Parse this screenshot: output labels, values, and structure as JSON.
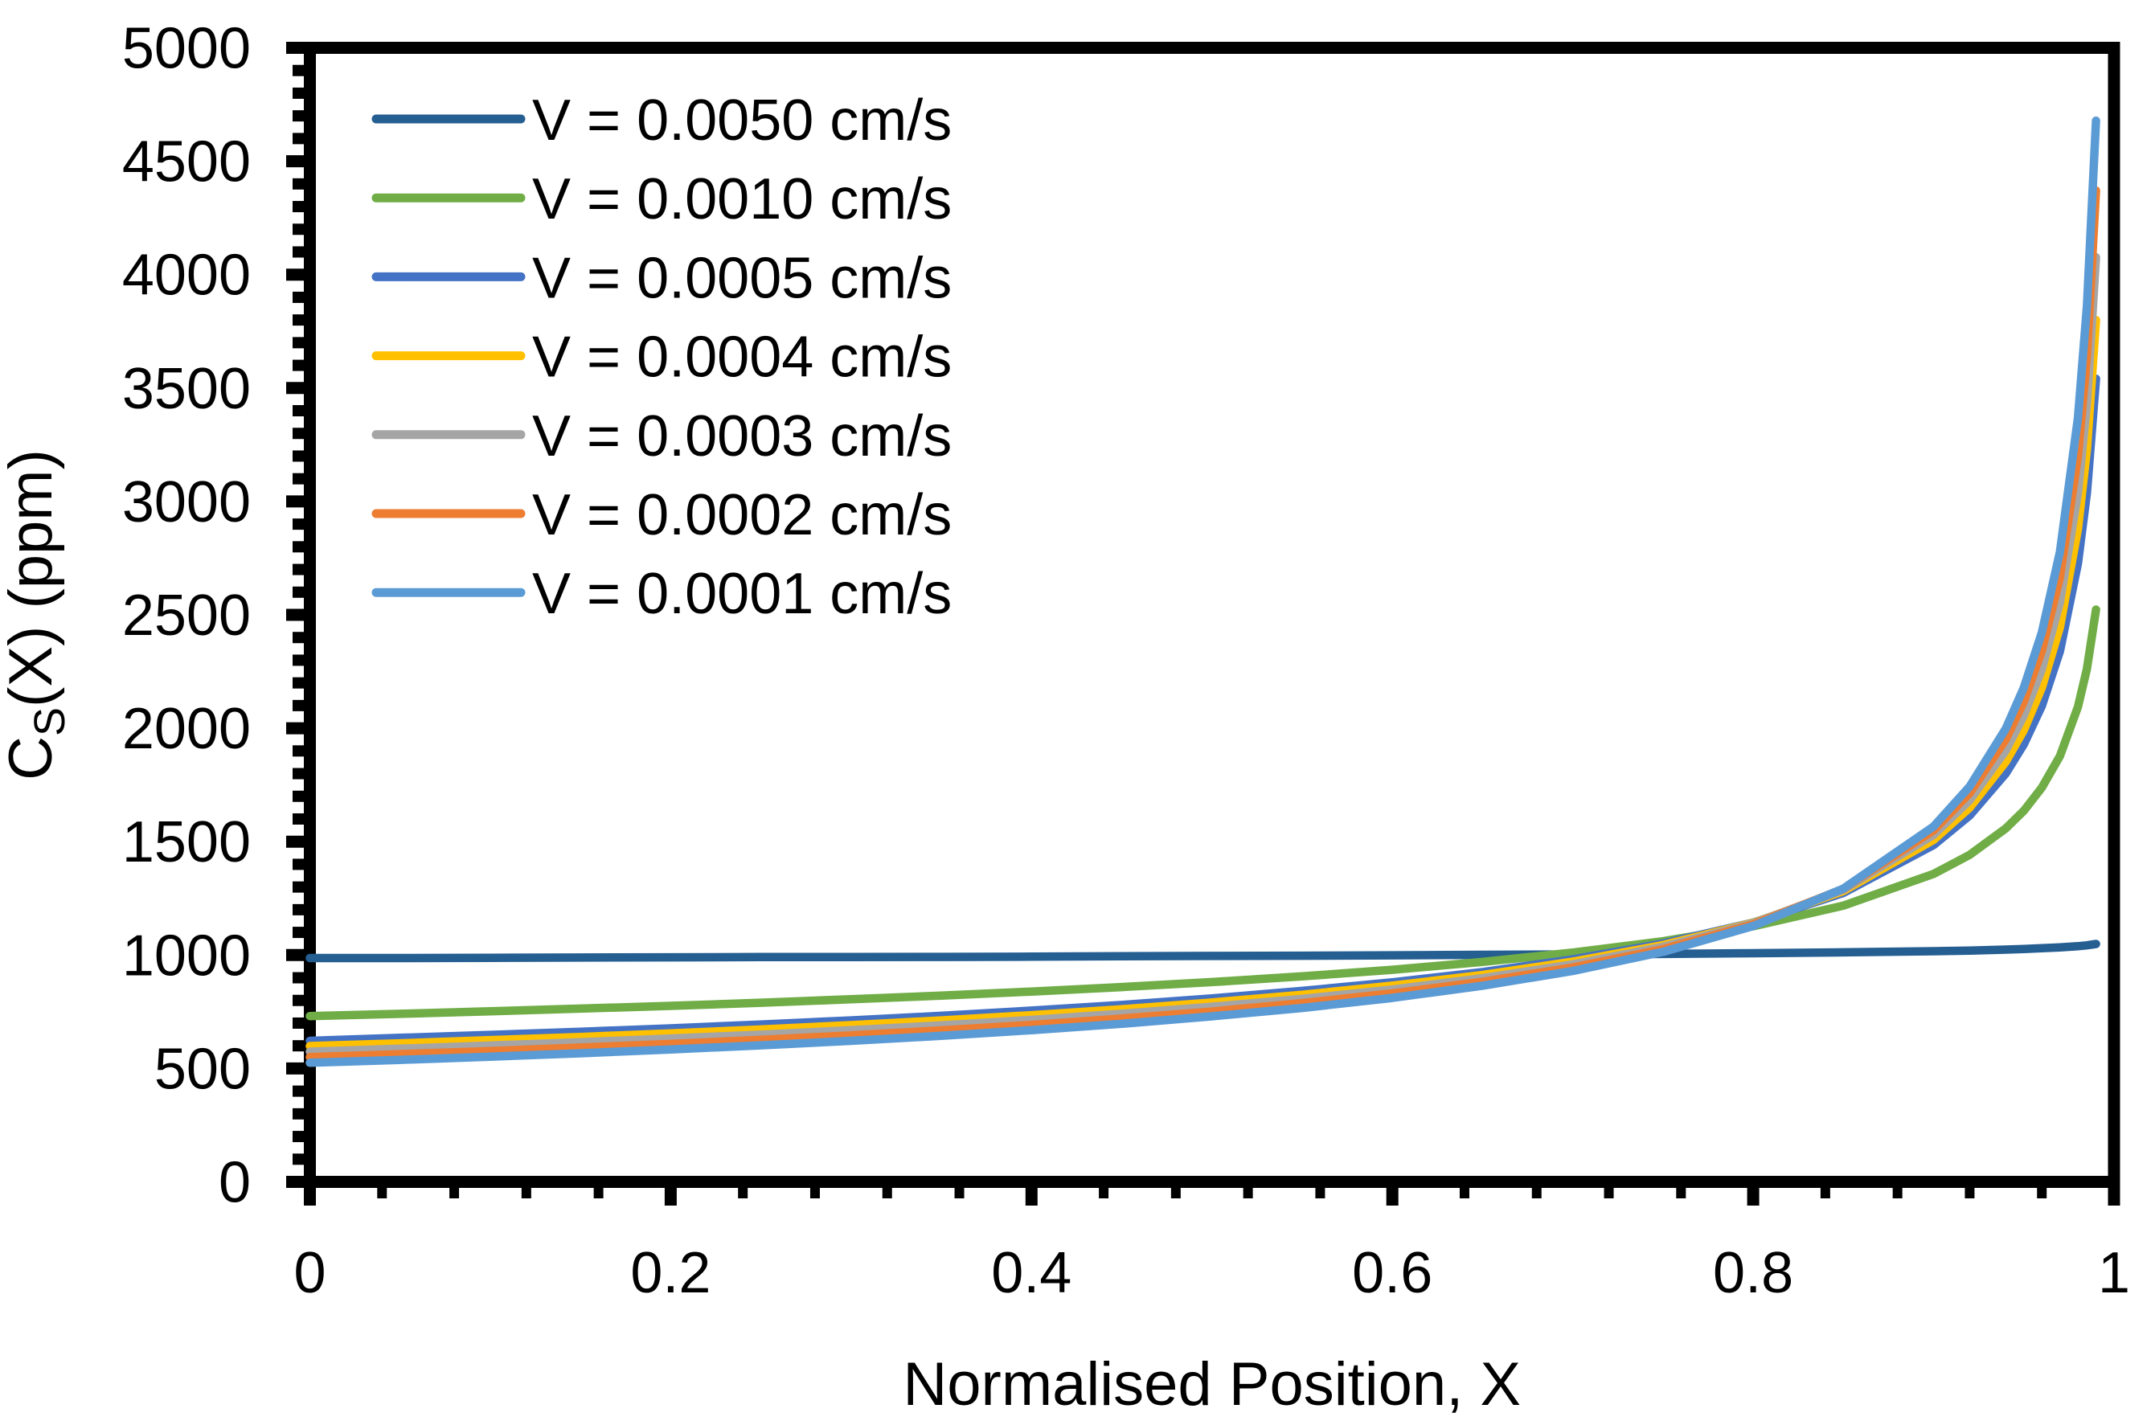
{
  "figure": {
    "background": "#FFFFFF",
    "axis_color": "#000000",
    "x_axis": {
      "title": "Normalised Position, X",
      "min": 0,
      "max": 1,
      "major_step": 0.2,
      "minor_step": 0.04,
      "tick_values": [
        0,
        0.2,
        0.4,
        0.6,
        0.8,
        1
      ],
      "tick_labels": [
        "0",
        "0.2",
        "0.4",
        "0.6",
        "0.8",
        "1"
      ]
    },
    "y_axis": {
      "title_plain": "CS(X) (ppm)",
      "title_parts": {
        "pre": "C",
        "sub": "S",
        "post": "(X) (ppm)"
      },
      "min": 0,
      "max": 5000,
      "major_step": 500,
      "minor_step": 100,
      "tick_values": [
        0,
        500,
        1000,
        1500,
        2000,
        2500,
        3000,
        3500,
        4000,
        4500,
        5000
      ],
      "tick_labels": [
        "0",
        "500",
        "1000",
        "1500",
        "2000",
        "2500",
        "3000",
        "3500",
        "4000",
        "4500",
        "5000"
      ]
    },
    "legend": {
      "position": "upper-left-inside",
      "items": [
        {
          "label": "V = 0.0050 cm/s",
          "color": "#255E91"
        },
        {
          "label": "V = 0.0010 cm/s",
          "color": "#70AD47"
        },
        {
          "label": "V = 0.0005 cm/s",
          "color": "#4472C4"
        },
        {
          "label": "V = 0.0004 cm/s",
          "color": "#FFC000"
        },
        {
          "label": "V = 0.0003 cm/s",
          "color": "#A5A5A5"
        },
        {
          "label": "V = 0.0002 cm/s",
          "color": "#ED7D31"
        },
        {
          "label": "V = 0.0001 cm/s",
          "color": "#5B9BD5"
        }
      ]
    }
  },
  "chart_data": {
    "type": "line",
    "title": "",
    "xlabel": "Normalised Position, X",
    "ylabel": "CS(X) (ppm)",
    "xlim": [
      0,
      1
    ],
    "ylim": [
      0,
      5000
    ],
    "grid": false,
    "legend_position": "upper left",
    "x": [
      0,
      0.05,
      0.1,
      0.15,
      0.2,
      0.25,
      0.3,
      0.35,
      0.4,
      0.45,
      0.5,
      0.55,
      0.6,
      0.65,
      0.7,
      0.75,
      0.8,
      0.85,
      0.9,
      0.92,
      0.94,
      0.95,
      0.96,
      0.97,
      0.98,
      0.985,
      0.99
    ],
    "series": [
      {
        "name": "V = 0.0050 cm/s",
        "color": "#255E91",
        "values": [
          987,
          987,
          988,
          989,
          990,
          991,
          991,
          992,
          993,
          995,
          996,
          997,
          999,
          1001,
          1003,
          1005,
          1008,
          1012,
          1017,
          1020,
          1024,
          1027,
          1030,
          1034,
          1039,
          1043,
          1049
        ]
      },
      {
        "name": "V = 0.0010 cm/s",
        "color": "#70AD47",
        "values": [
          731,
          741,
          752,
          764,
          776,
          790,
          805,
          821,
          839,
          859,
          881,
          906,
          935,
          970,
          1011,
          1061,
          1127,
          1218,
          1358,
          1442,
          1558,
          1636,
          1738,
          1877,
          2094,
          2262,
          2523
        ]
      },
      {
        "name": "V = 0.0005 cm/s",
        "color": "#4472C4",
        "values": [
          622,
          635,
          648,
          662,
          677,
          694,
          712,
          732,
          755,
          780,
          809,
          842,
          880,
          925,
          981,
          1051,
          1143,
          1274,
          1485,
          1615,
          1800,
          1929,
          2098,
          2339,
          2726,
          3038,
          3541
        ]
      },
      {
        "name": "V = 0.0004 cm/s",
        "color": "#FFC000",
        "values": [
          599,
          611,
          625,
          639,
          655,
          672,
          691,
          712,
          735,
          761,
          791,
          825,
          865,
          912,
          971,
          1044,
          1142,
          1282,
          1508,
          1650,
          1852,
          1992,
          2179,
          2445,
          2878,
          3230,
          3800
        ]
      },
      {
        "name": "V = 0.0003 cm/s",
        "color": "#A5A5A5",
        "values": [
          574,
          587,
          601,
          616,
          632,
          649,
          669,
          690,
          714,
          741,
          772,
          807,
          848,
          898,
          959,
          1036,
          1140,
          1288,
          1530,
          1683,
          1902,
          2056,
          2260,
          2555,
          3036,
          3431,
          4077
        ]
      },
      {
        "name": "V = 0.0002 cm/s",
        "color": "#ED7D31",
        "values": [
          550,
          563,
          577,
          592,
          608,
          626,
          646,
          668,
          692,
          720,
          751,
          788,
          831,
          882,
          945,
          1026,
          1135,
          1292,
          1550,
          1714,
          1951,
          2118,
          2342,
          2666,
          3200,
          3642,
          4371
        ]
      },
      {
        "name": "V = 0.0001 cm/s",
        "color": "#5B9BD5",
        "values": [
          525,
          538,
          552,
          567,
          584,
          602,
          622,
          644,
          669,
          697,
          730,
          767,
          811,
          865,
          930,
          1014,
          1128,
          1293,
          1567,
          1743,
          1998,
          2179,
          2422,
          2777,
          3367,
          3860,
          4679
        ]
      }
    ]
  }
}
